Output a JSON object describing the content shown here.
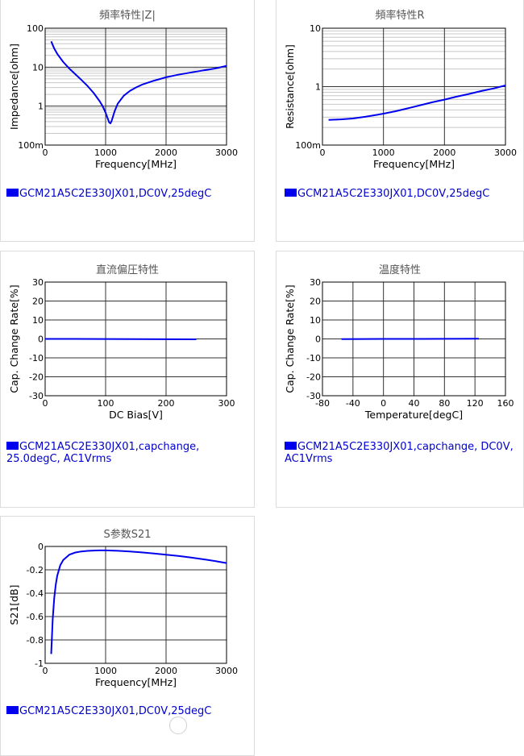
{
  "legend_color": "#0000ee",
  "chart_data": [
    {
      "type": "line",
      "title": "頻率特性|Z|",
      "xlabel": "Frequency[MHz]",
      "ylabel": "Impedance[ohm]",
      "xscale": "linear",
      "yscale": "log",
      "xlim": [
        0,
        3000
      ],
      "ylim": [
        0.1,
        100
      ],
      "xticks": [
        0,
        1000,
        2000,
        3000
      ],
      "xtick_labels": [
        "0",
        "1000",
        "2000",
        "3000"
      ],
      "yticks": [
        0.1,
        1,
        10,
        100
      ],
      "ytick_labels": [
        "100m",
        "1",
        "10",
        "100"
      ],
      "grid": true,
      "legend": "GCM21A5C2E330JX01,DC0V,25degC",
      "series": [
        {
          "color": "#0000ee",
          "x": [
            100,
            150,
            200,
            300,
            400,
            500,
            600,
            700,
            800,
            900,
            950,
            1000,
            1030,
            1060,
            1080,
            1100,
            1150,
            1200,
            1300,
            1400,
            1500,
            1600,
            1800,
            2000,
            2200,
            2500,
            2800,
            3000
          ],
          "y": [
            46,
            30,
            22,
            13.5,
            9.2,
            6.6,
            4.7,
            3.3,
            2.2,
            1.35,
            1.0,
            0.68,
            0.5,
            0.38,
            0.36,
            0.42,
            0.75,
            1.15,
            1.85,
            2.45,
            3.0,
            3.55,
            4.5,
            5.5,
            6.4,
            7.7,
            9.2,
            10.8
          ]
        }
      ]
    },
    {
      "type": "line",
      "title": "頻率特性R",
      "xlabel": "Frequency[MHz]",
      "ylabel": "Resistance[ohm]",
      "xscale": "linear",
      "yscale": "log",
      "xlim": [
        0,
        3000
      ],
      "ylim": [
        0.1,
        10
      ],
      "xticks": [
        0,
        1000,
        2000,
        3000
      ],
      "xtick_labels": [
        "0",
        "1000",
        "2000",
        "3000"
      ],
      "yticks": [
        0.1,
        1,
        10
      ],
      "ytick_labels": [
        "100m",
        "1",
        "10"
      ],
      "grid": true,
      "legend": "GCM21A5C2E330JX01,DC0V,25degC",
      "series": [
        {
          "color": "#0000ee",
          "x": [
            100,
            300,
            500,
            700,
            900,
            1000,
            1200,
            1400,
            1600,
            1800,
            2000,
            2200,
            2400,
            2600,
            2800,
            3000
          ],
          "y": [
            0.27,
            0.275,
            0.285,
            0.305,
            0.33,
            0.345,
            0.38,
            0.425,
            0.48,
            0.54,
            0.6,
            0.675,
            0.75,
            0.84,
            0.93,
            1.05
          ]
        }
      ]
    },
    {
      "type": "line",
      "title": "直流偏圧特性",
      "xlabel": "DC Bias[V]",
      "ylabel": "Cap. Change Rate[%]",
      "xlim": [
        0,
        300
      ],
      "ylim": [
        -30,
        30
      ],
      "xticks": [
        0,
        100,
        200,
        300
      ],
      "xtick_labels": [
        "0",
        "100",
        "200",
        "300"
      ],
      "yticks": [
        -30,
        -20,
        -10,
        0,
        10,
        20,
        30
      ],
      "ytick_labels": [
        "-30",
        "-20",
        "-10",
        "0",
        "10",
        "20",
        "30"
      ],
      "grid": true,
      "legend": "GCM21A5C2E330JX01,capchange, 25.0degC, AC1Vrms",
      "series": [
        {
          "color": "#0000ee",
          "x": [
            0,
            50,
            100,
            150,
            200,
            250
          ],
          "y": [
            0,
            0,
            -0.05,
            -0.1,
            -0.15,
            -0.2
          ]
        }
      ]
    },
    {
      "type": "line",
      "title": "温度特性",
      "xlabel": "Temperature[degC]",
      "ylabel": "Cap. Change Rate[%]",
      "xlim": [
        -80,
        160
      ],
      "ylim": [
        -30,
        30
      ],
      "xticks": [
        -80,
        -40,
        0,
        40,
        80,
        120,
        160
      ],
      "xtick_labels": [
        "-80",
        "-40",
        "0",
        "40",
        "80",
        "120",
        "160"
      ],
      "yticks": [
        -30,
        -20,
        -10,
        0,
        10,
        20,
        30
      ],
      "ytick_labels": [
        "-30",
        "-20",
        "-10",
        "0",
        "10",
        "20",
        "30"
      ],
      "grid": true,
      "legend": "GCM21A5C2E330JX01,capchange, DC0V, AC1Vrms",
      "series": [
        {
          "color": "#0000ee",
          "x": [
            -55,
            -25,
            0,
            25,
            50,
            85,
            125
          ],
          "y": [
            -0.1,
            -0.05,
            0,
            0,
            0.02,
            0.05,
            0.08
          ]
        }
      ]
    },
    {
      "type": "line",
      "title": "S参数S21",
      "xlabel": "Frequency[MHz]",
      "ylabel": "S21[dB]",
      "xlim": [
        0,
        3000
      ],
      "ylim": [
        -1,
        0
      ],
      "xticks": [
        0,
        1000,
        2000,
        3000
      ],
      "xtick_labels": [
        "0",
        "1000",
        "2000",
        "3000"
      ],
      "yticks": [
        -1,
        -0.8,
        -0.6,
        -0.4,
        -0.2,
        0
      ],
      "ytick_labels": [
        "-1",
        "-0.8",
        "-0.6",
        "-0.4",
        "-0.2",
        "0"
      ],
      "grid": true,
      "legend": "GCM21A5C2E330JX01,DC0V,25degC",
      "series": [
        {
          "color": "#0000ee",
          "x": [
            100,
            125,
            150,
            175,
            200,
            250,
            300,
            400,
            500,
            600,
            700,
            800,
            900,
            1000,
            1200,
            1400,
            1600,
            1800,
            2000,
            2200,
            2400,
            2600,
            2800,
            3000
          ],
          "y": [
            -0.92,
            -0.62,
            -0.44,
            -0.33,
            -0.25,
            -0.16,
            -0.115,
            -0.07,
            -0.052,
            -0.043,
            -0.038,
            -0.035,
            -0.034,
            -0.034,
            -0.037,
            -0.043,
            -0.051,
            -0.06,
            -0.07,
            -0.081,
            -0.094,
            -0.108,
            -0.124,
            -0.142
          ]
        }
      ]
    }
  ]
}
